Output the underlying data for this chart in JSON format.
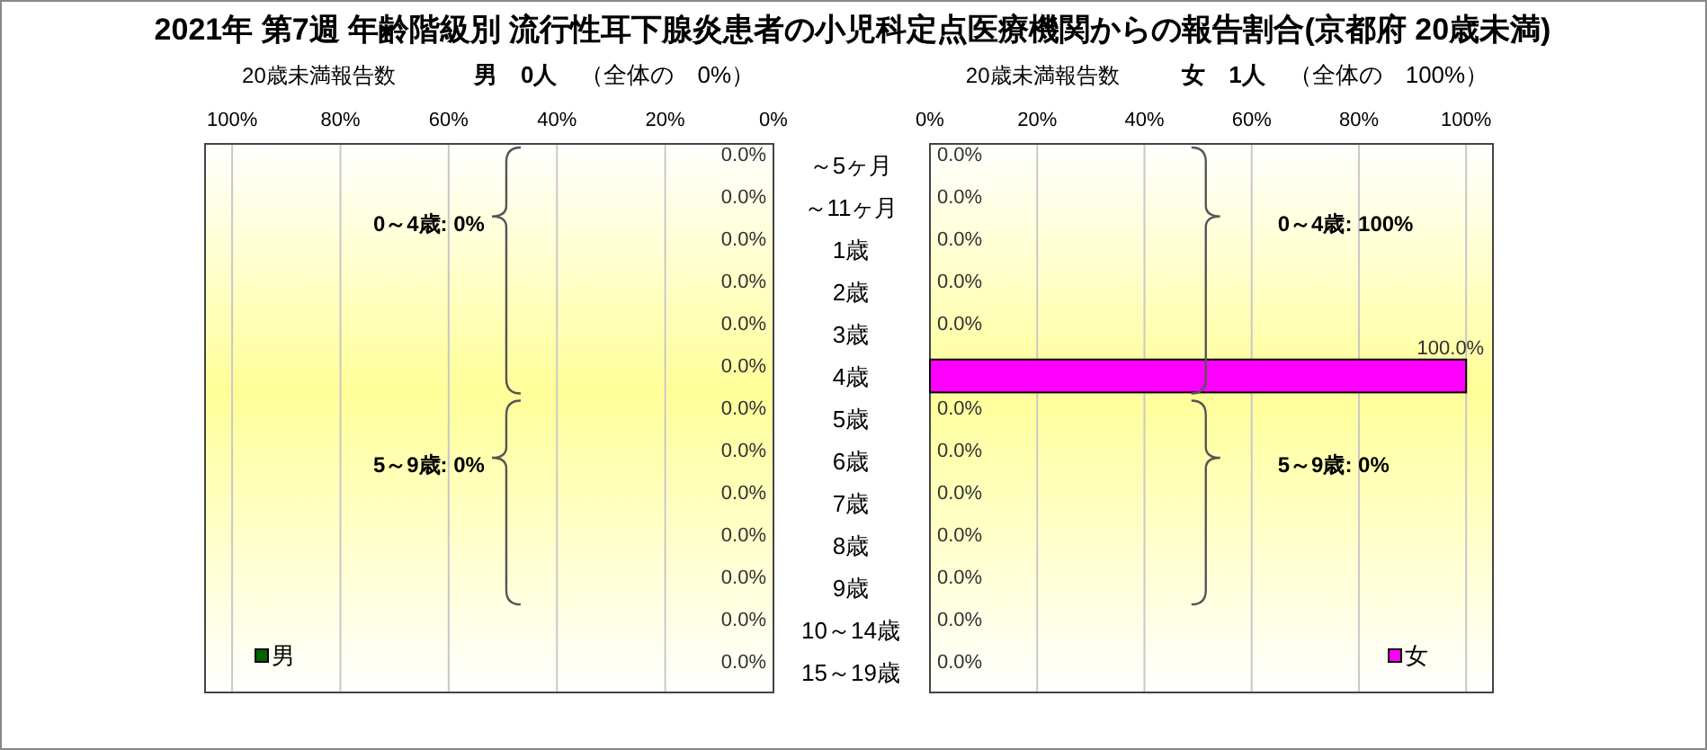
{
  "chart_data": [
    {
      "type": "bar",
      "orientation": "horizontal",
      "title": "2021年 第7週 年齢階級別 流行性耳下腺炎患者の小児科定点医療機関からの報告割合(京都府 20歳未満)",
      "subtitle": "**男　0人**　（全体の　0%）",
      "annotations": [
        "20歳未満報告数",
        "0～4歳: 0%",
        "5～9歳: 0%"
      ],
      "categories": [
        "～5ヶ月",
        "～11ヶ月",
        "1歳",
        "2歳",
        "3歳",
        "4歳",
        "5歳",
        "6歳",
        "7歳",
        "8歳",
        "9歳",
        "10～14歳",
        "15～19歳"
      ],
      "series": [
        {
          "name": "男",
          "color": "#006400",
          "values": [
            0,
            0,
            0,
            0,
            0,
            0,
            0,
            0,
            0,
            0,
            0,
            0,
            0
          ],
          "value_labels": [
            "0.0%",
            "0.0%",
            "0.0%",
            "0.0%",
            "0.0%",
            "0.0%",
            "0.0%",
            "0.0%",
            "0.0%",
            "0.0%",
            "0.0%",
            "0.0%",
            "0.0%"
          ]
        }
      ],
      "xlim": [
        105,
        0
      ],
      "xticks": [
        {
          "value": 100,
          "label": "100%"
        },
        {
          "value": 80,
          "label": "80%"
        },
        {
          "value": 60,
          "label": "60%"
        },
        {
          "value": 40,
          "label": "40%"
        },
        {
          "value": 20,
          "label": "20%"
        },
        {
          "value": 0,
          "label": "0%"
        }
      ],
      "grid": "x",
      "legend": "bottom left"
    },
    {
      "type": "bar",
      "orientation": "horizontal",
      "subtitle": "**女　1人**　（全体の　100%）",
      "annotations": [
        "20歳未満報告数",
        "0～4歳: 100%",
        "5～9歳: 0%"
      ],
      "categories": [
        null,
        null,
        null,
        null,
        null,
        null,
        null,
        null,
        null,
        null,
        null,
        null,
        null
      ],
      "series": [
        {
          "name": "女",
          "color": "#ff00ff",
          "values": [
            0,
            0,
            0,
            0,
            0,
            100,
            0,
            0,
            0,
            0,
            0,
            0,
            0
          ],
          "value_labels": [
            "0.0%",
            "0.0%",
            "0.0%",
            "0.0%",
            "0.0%",
            "100.0%",
            "0.0%",
            "0.0%",
            "0.0%",
            "0.0%",
            "0.0%",
            "0.0%",
            "0.0%"
          ]
        }
      ],
      "xlim": [
        0,
        105
      ],
      "xticks": [
        {
          "value": 0,
          "label": "0%"
        },
        {
          "value": 20,
          "label": "20%"
        },
        {
          "value": 40,
          "label": "40%"
        },
        {
          "value": 60,
          "label": "60%"
        },
        {
          "value": 80,
          "label": "80%"
        },
        {
          "value": 100,
          "label": "100%"
        }
      ],
      "grid": "x",
      "legend": "bottom right",
      "tick_labels": "x"
    }
  ]
}
